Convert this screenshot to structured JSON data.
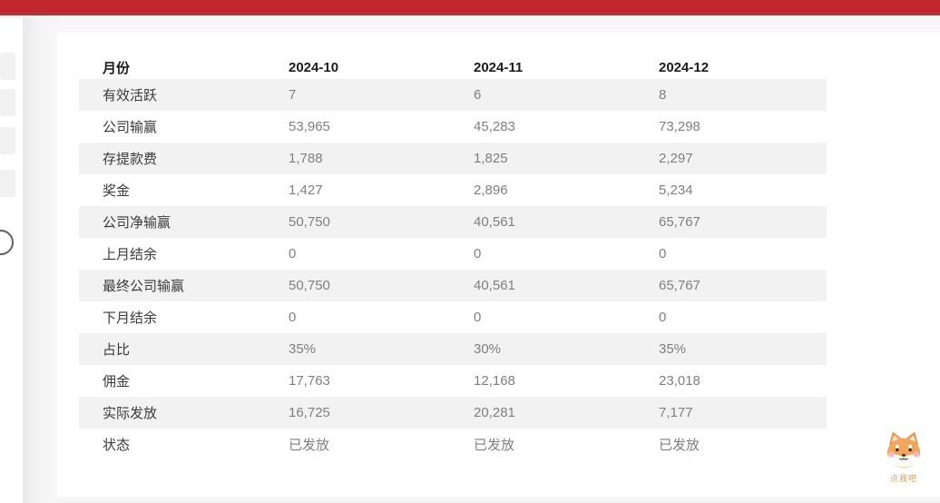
{
  "topbar": {
    "color": "#c2272e",
    "underline_color": "#a33b3e"
  },
  "sidebar": {
    "skeleton_items": 4,
    "toggle_icon": "circle-toggle"
  },
  "table": {
    "columns": [
      "月份",
      "2024-10",
      "2024-11",
      "2024-12"
    ],
    "rows": [
      {
        "label": "有效活跃",
        "values": [
          "7",
          "6",
          "8"
        ]
      },
      {
        "label": "公司输赢",
        "values": [
          "53,965",
          "45,283",
          "73,298"
        ]
      },
      {
        "label": "存提款费",
        "values": [
          "1,788",
          "1,825",
          "2,297"
        ]
      },
      {
        "label": "奖金",
        "values": [
          "1,427",
          "2,896",
          "5,234"
        ]
      },
      {
        "label": "公司净输赢",
        "values": [
          "50,750",
          "40,561",
          "65,767"
        ]
      },
      {
        "label": "上月结余",
        "values": [
          "0",
          "0",
          "0"
        ]
      },
      {
        "label": "最终公司输赢",
        "values": [
          "50,750",
          "40,561",
          "65,767"
        ]
      },
      {
        "label": "下月结余",
        "values": [
          "0",
          "0",
          "0"
        ]
      },
      {
        "label": "占比",
        "values": [
          "35%",
          "30%",
          "35%"
        ]
      },
      {
        "label": "佣金",
        "values": [
          "17,763",
          "12,168",
          "23,018"
        ]
      },
      {
        "label": "实际发放",
        "values": [
          "16,725",
          "20,281",
          "7,177"
        ]
      },
      {
        "label": "状态",
        "values": [
          "已发放",
          "已发放",
          "已发放"
        ]
      }
    ],
    "stripe_color": "#f2f2f2"
  },
  "mascot": {
    "label": "点我吧"
  }
}
